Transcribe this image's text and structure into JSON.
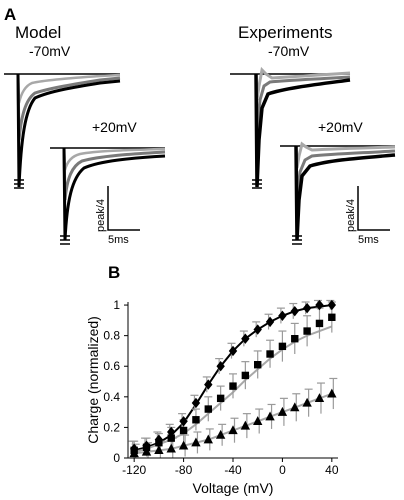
{
  "panel_a": {
    "label": "A",
    "model_title": "Model",
    "experiments_title": "Experiments",
    "v_hold_low": "-70mV",
    "v_hold_high": "+20mV",
    "scale_y": "peak/4",
    "scale_x": "5ms"
  },
  "panel_b": {
    "label": "B"
  },
  "colors": {
    "black": "#000000",
    "gray": "#a8a8a8",
    "errbar": "#9a9a9a"
  },
  "chart_data": {
    "type": "scatter",
    "xlabel": "Voltage (mV)",
    "ylabel": "Charge (normalized)",
    "xlim": [
      -125,
      45
    ],
    "ylim": [
      0,
      1.02
    ],
    "xticks": [
      "-120",
      "-80",
      "-40",
      "0",
      "40"
    ],
    "yticks": [
      "0",
      "0.2",
      "0.4",
      "0.6",
      "0.8",
      "1"
    ],
    "x": [
      -120,
      -110,
      -100,
      -90,
      -80,
      -70,
      -60,
      -50,
      -40,
      -30,
      -20,
      -10,
      0,
      10,
      20,
      30,
      40
    ],
    "series": [
      {
        "marker": "diamond",
        "values": [
          0.06,
          0.08,
          0.12,
          0.17,
          0.24,
          0.36,
          0.48,
          0.6,
          0.7,
          0.78,
          0.84,
          0.89,
          0.93,
          0.96,
          0.98,
          1.0,
          1.0
        ],
        "errors": [
          0.05,
          0.05,
          0.05,
          0.05,
          0.05,
          0.05,
          0.05,
          0.05,
          0.05,
          0.05,
          0.05,
          0.05,
          0.05,
          0.05,
          0.04,
          0.03,
          0.03
        ]
      },
      {
        "marker": "square",
        "values": [
          0.05,
          0.07,
          0.1,
          0.13,
          0.18,
          0.25,
          0.32,
          0.39,
          0.47,
          0.54,
          0.61,
          0.68,
          0.73,
          0.78,
          0.83,
          0.88,
          0.92
        ],
        "errors": [
          0.06,
          0.06,
          0.06,
          0.07,
          0.07,
          0.07,
          0.08,
          0.08,
          0.08,
          0.09,
          0.09,
          0.09,
          0.1,
          0.1,
          0.1,
          0.1,
          0.1
        ]
      },
      {
        "marker": "triangle",
        "values": [
          0.03,
          0.04,
          0.05,
          0.06,
          0.08,
          0.1,
          0.12,
          0.15,
          0.18,
          0.21,
          0.24,
          0.27,
          0.3,
          0.33,
          0.36,
          0.39,
          0.42
        ],
        "errors": [
          0.06,
          0.06,
          0.06,
          0.07,
          0.07,
          0.07,
          0.07,
          0.07,
          0.08,
          0.08,
          0.08,
          0.08,
          0.09,
          0.09,
          0.09,
          0.1,
          0.1
        ]
      }
    ],
    "fit_curves": [
      {
        "color": "black",
        "values": [
          0.05,
          0.07,
          0.1,
          0.15,
          0.23,
          0.35,
          0.48,
          0.6,
          0.7,
          0.78,
          0.84,
          0.89,
          0.93,
          0.96,
          0.98,
          0.99,
          1.0
        ]
      },
      {
        "color": "gray",
        "values": [
          0.04,
          0.06,
          0.09,
          0.12,
          0.16,
          0.22,
          0.29,
          0.36,
          0.43,
          0.51,
          0.58,
          0.65,
          0.71,
          0.76,
          0.8,
          0.83,
          0.86
        ]
      },
      {
        "color": "gray",
        "values": [
          0.03,
          0.04,
          0.05,
          0.06,
          0.08,
          0.1,
          0.12,
          0.15,
          0.18,
          0.21,
          0.24,
          0.27,
          0.3,
          0.33,
          0.36,
          0.39,
          0.42
        ]
      }
    ]
  }
}
